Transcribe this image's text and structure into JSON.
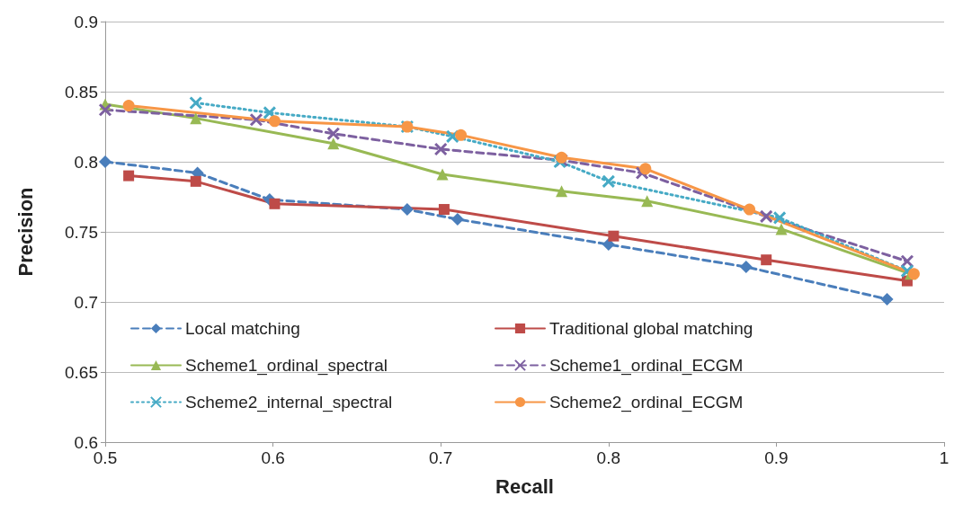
{
  "chart_data": {
    "type": "line",
    "xlabel": "Recall",
    "ylabel": "Precision",
    "xlim": [
      0.5,
      1
    ],
    "xticks": [
      0.5,
      0.6,
      0.7,
      0.8,
      0.9,
      1
    ],
    "ylim": [
      0.6,
      0.9
    ],
    "yticks": [
      0.6,
      0.65,
      0.7,
      0.75,
      0.8,
      0.85,
      0.9
    ],
    "grid": "y",
    "legend": "bottom left",
    "series": [
      {
        "name": "Local matching",
        "color": "#4a7ebb",
        "marker": "diamond",
        "line_style": "dashed",
        "x": [
          0.5,
          0.555,
          0.598,
          0.68,
          0.71,
          0.8,
          0.882,
          0.966
        ],
        "values": [
          0.8,
          0.792,
          0.773,
          0.766,
          0.759,
          0.741,
          0.725,
          0.702
        ]
      },
      {
        "name": "Traditional global matching",
        "color": "#be4b48",
        "marker": "square",
        "line_style": "solid",
        "x": [
          0.514,
          0.554,
          0.601,
          0.702,
          0.803,
          0.894,
          0.978
        ],
        "values": [
          0.79,
          0.786,
          0.77,
          0.766,
          0.747,
          0.73,
          0.715
        ]
      },
      {
        "name": "Scheme1_ordinal_spectral",
        "color": "#98b954",
        "marker": "triangle",
        "line_style": "solid",
        "x": [
          0.5,
          0.554,
          0.636,
          0.701,
          0.772,
          0.823,
          0.903,
          0.98
        ],
        "values": [
          0.841,
          0.831,
          0.813,
          0.791,
          0.779,
          0.772,
          0.752,
          0.72
        ]
      },
      {
        "name": "Scheme1_ordinal_ECGM",
        "color": "#7d60a0",
        "marker": "cross",
        "line_style": "dashed",
        "x": [
          0.5,
          0.59,
          0.636,
          0.7,
          0.772,
          0.82,
          0.894,
          0.978
        ],
        "values": [
          0.837,
          0.83,
          0.82,
          0.809,
          0.801,
          0.792,
          0.761,
          0.729
        ]
      },
      {
        "name": "Scheme2_internal_spectral",
        "color": "#46aac5",
        "marker": "cross",
        "line_style": "dotted",
        "x": [
          0.554,
          0.598,
          0.68,
          0.707,
          0.771,
          0.8,
          0.902,
          0.978
        ],
        "values": [
          0.842,
          0.835,
          0.825,
          0.818,
          0.8,
          0.786,
          0.76,
          0.722
        ]
      },
      {
        "name": "Scheme2_ordinal_ECGM",
        "color": "#f79646",
        "marker": "circle",
        "line_style": "solid",
        "x": [
          0.514,
          0.601,
          0.68,
          0.712,
          0.772,
          0.822,
          0.884,
          0.982
        ],
        "values": [
          0.84,
          0.829,
          0.825,
          0.819,
          0.803,
          0.795,
          0.766,
          0.72
        ]
      }
    ]
  }
}
